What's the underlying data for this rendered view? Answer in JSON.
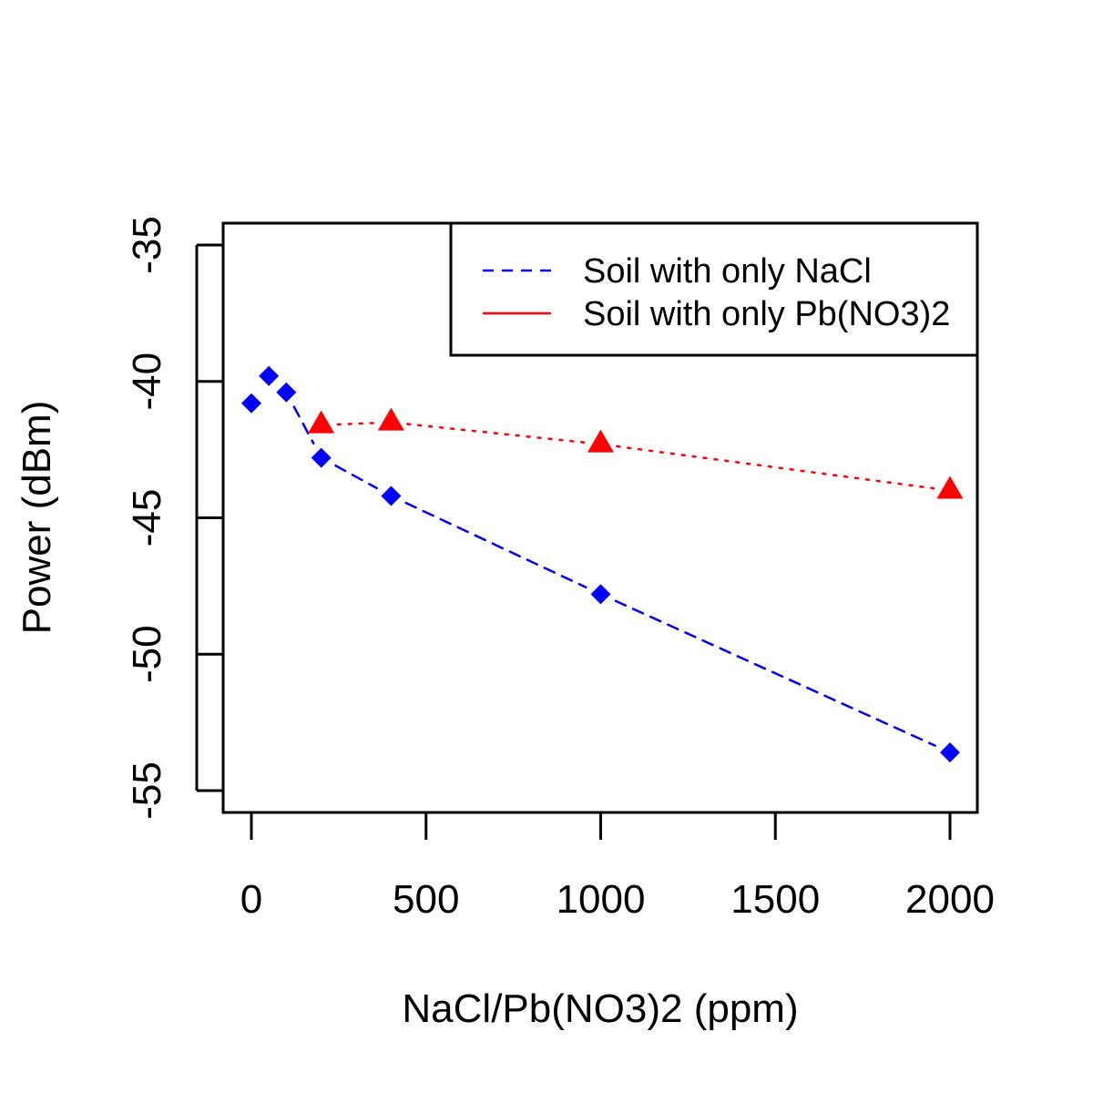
{
  "chart_data": {
    "type": "line",
    "title": "",
    "xlabel": "NaCl/Pb(NO3)2 (ppm)",
    "ylabel": "Power (dBm)",
    "xlim": [
      -80,
      2080
    ],
    "ylim": [
      -55.8,
      -34.2
    ],
    "xticks": [
      0,
      500,
      1000,
      1500,
      2000
    ],
    "xtick_labels": [
      "0",
      "500",
      "1000",
      "1500",
      "2000"
    ],
    "yticks": [
      -35,
      -40,
      -45,
      -50,
      -55
    ],
    "ytick_labels": [
      "-35",
      "-40",
      "-45",
      "-50",
      "-55"
    ],
    "grid": false,
    "legend": {
      "placement": "top-right"
    },
    "series": [
      {
        "name": "Soil with only NaCl",
        "color": "#0000ff",
        "line_style": "dashed",
        "marker": "diamond",
        "x": [
          0,
          50,
          100,
          200,
          400,
          1000,
          2000
        ],
        "y": [
          -40.8,
          -39.8,
          -40.4,
          -42.8,
          -44.2,
          -47.8,
          -53.6
        ]
      },
      {
        "name": "Soil with only Pb(NO3)2",
        "color": "#ff0000",
        "line_style": "dotted",
        "marker": "triangle",
        "x": [
          200,
          400,
          1000,
          2000
        ],
        "y": [
          -41.6,
          -41.5,
          -42.3,
          -44.0
        ]
      }
    ]
  }
}
